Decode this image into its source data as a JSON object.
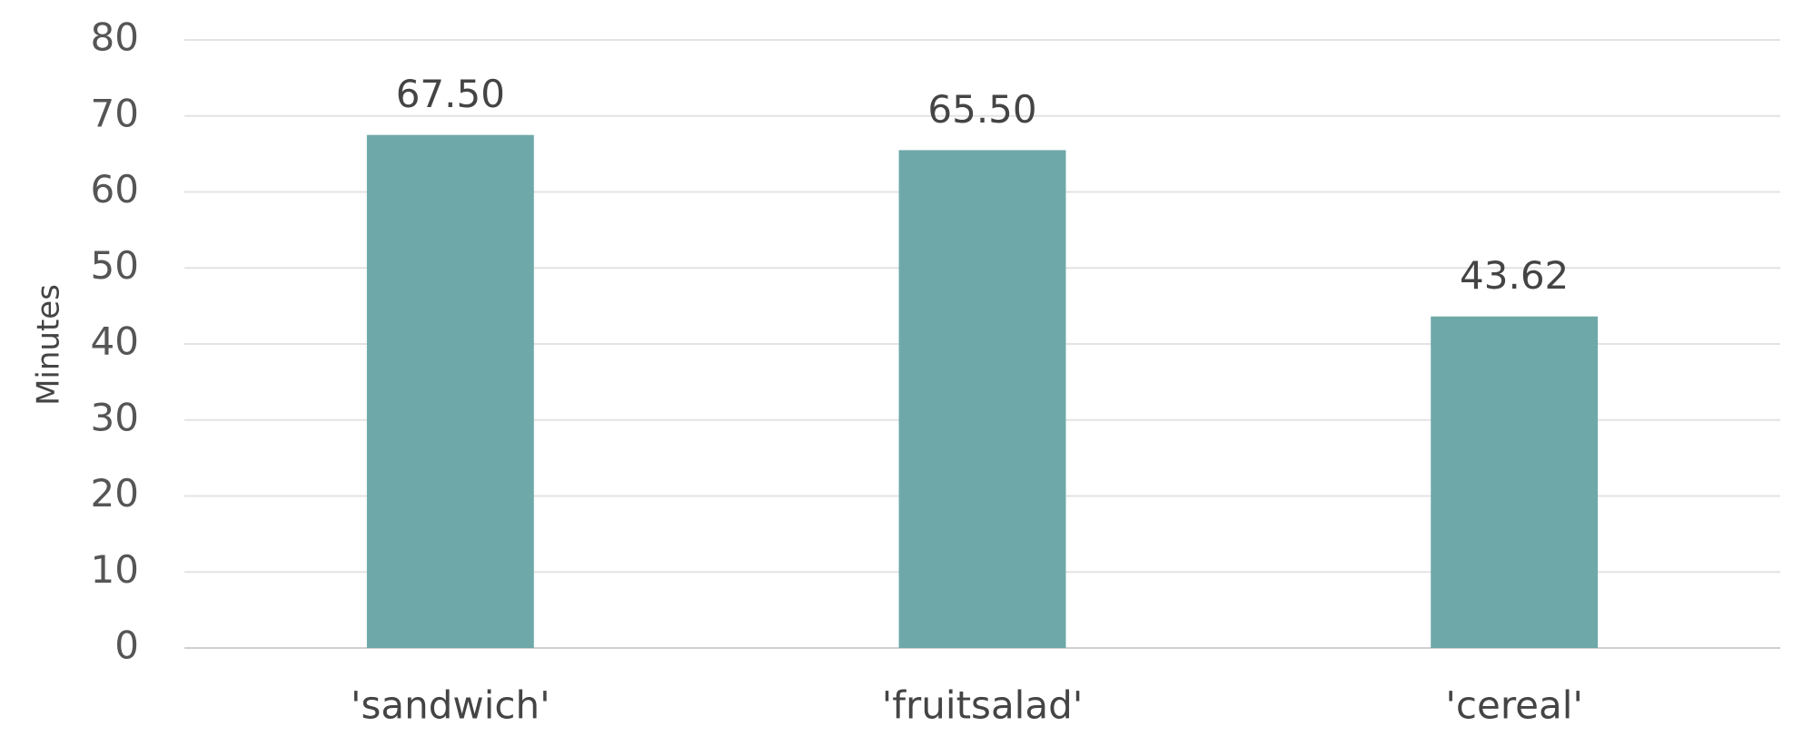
{
  "chart_data": {
    "type": "bar",
    "y_label": "Minutes",
    "categories": [
      "'sandwich'",
      "'fruitsalad'",
      "'cereal'"
    ],
    "values": [
      67.5,
      65.5,
      43.62
    ],
    "value_labels": [
      "67.50",
      "65.50",
      "43.62"
    ],
    "color": "#6fa8a9",
    "ylim": [
      0,
      80
    ],
    "yticks": [
      0,
      10,
      20,
      30,
      40,
      50,
      60,
      70,
      80
    ],
    "grid": true
  }
}
